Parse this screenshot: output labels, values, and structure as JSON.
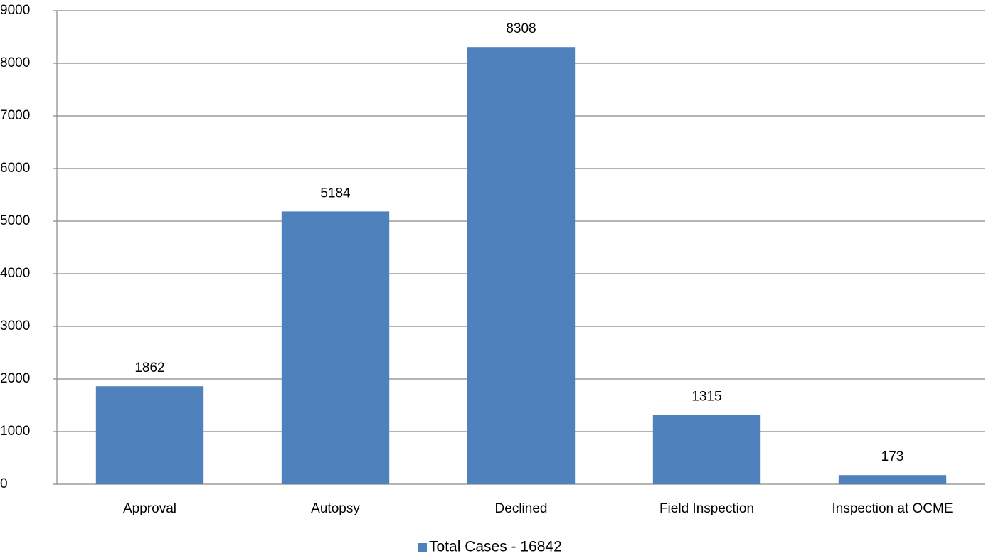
{
  "chart_data": {
    "type": "bar",
    "categories": [
      "Approval",
      "Autopsy",
      "Declined",
      "Field Inspection",
      "Inspection at OCME"
    ],
    "series": [
      {
        "name": "Total Cases - 16842",
        "color": "#4f81bd",
        "values": [
          1862,
          5184,
          8308,
          1315,
          173
        ]
      }
    ],
    "ylim": [
      0,
      9000
    ],
    "yticks": [
      0,
      1000,
      2000,
      3000,
      4000,
      5000,
      6000,
      7000,
      8000,
      9000
    ],
    "grid": true,
    "legend": "bottom"
  }
}
